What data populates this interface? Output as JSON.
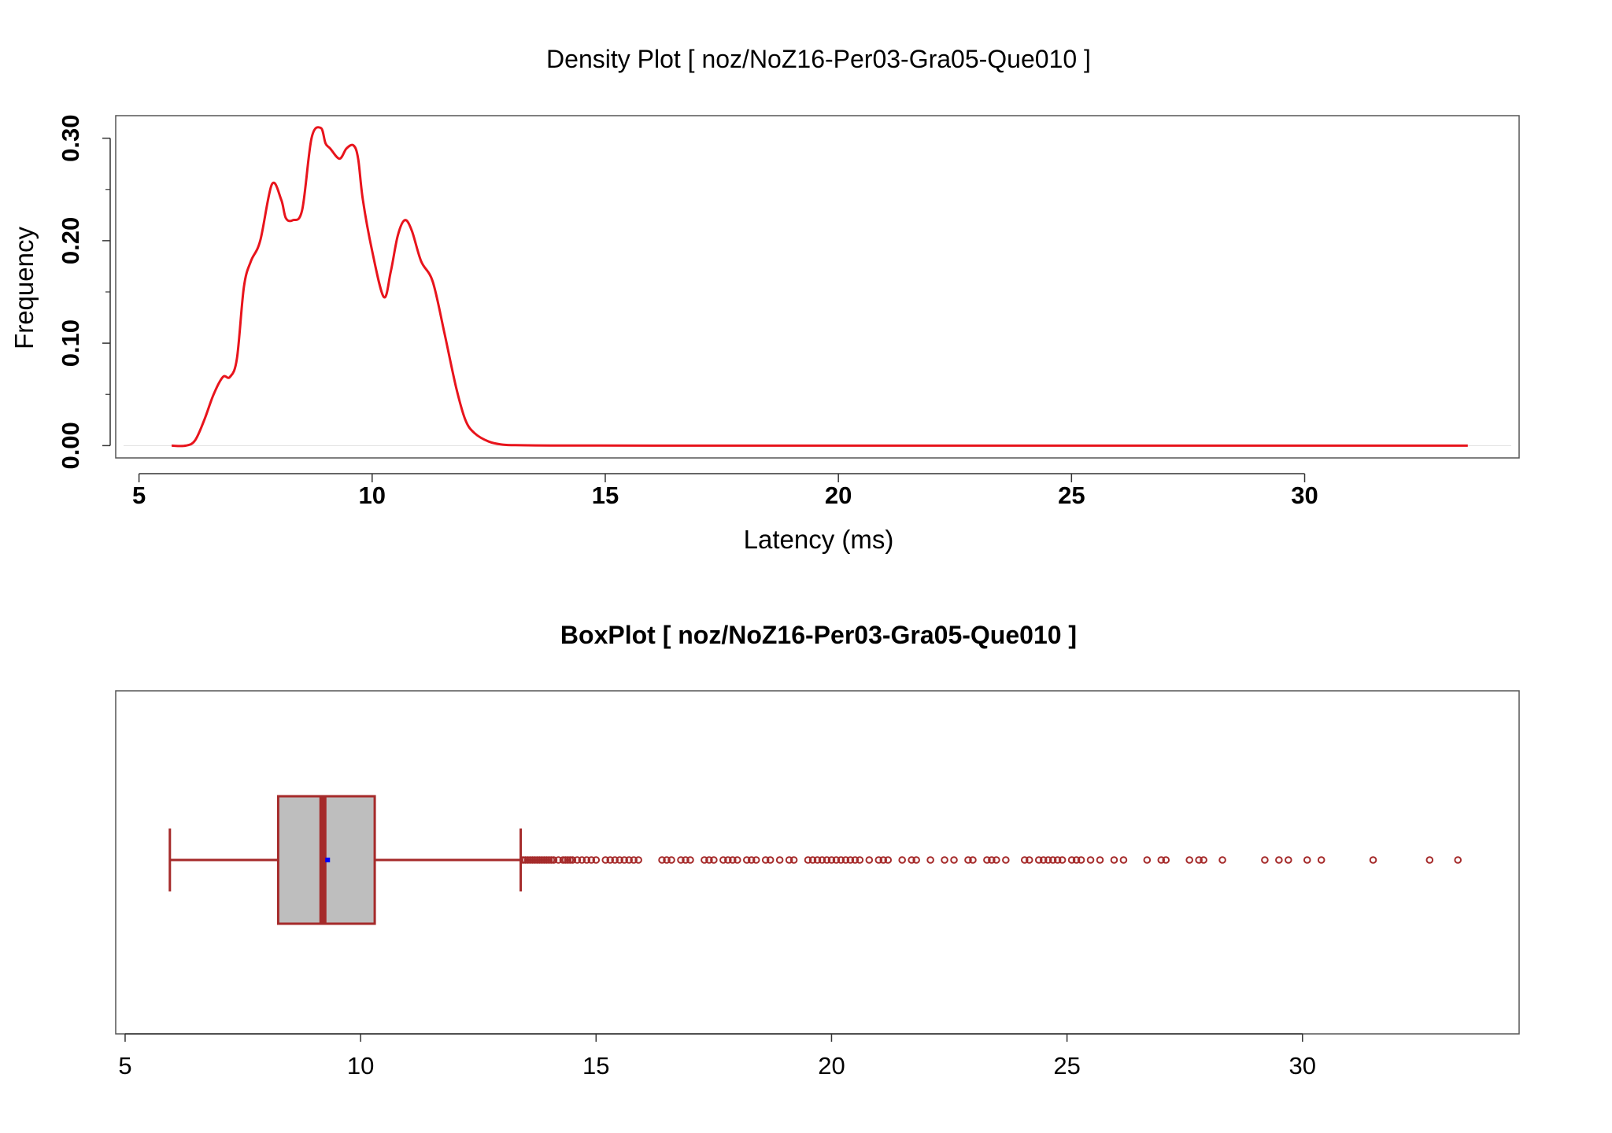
{
  "chart_data": [
    {
      "type": "line",
      "title": "Density Plot [ noz/NoZ16-Per03-Gra05-Que010 ]",
      "xlabel": "Latency (ms)",
      "ylabel": "Frequency",
      "xlim": [
        4.5,
        34.6
      ],
      "ylim": [
        -0.012,
        0.322
      ],
      "x_ticks": [
        5,
        10,
        15,
        20,
        25,
        30
      ],
      "x_tick_labels": [
        "5",
        "10",
        "15",
        "20",
        "25",
        "30"
      ],
      "y_ticks": [
        0.0,
        0.1,
        0.2,
        0.3
      ],
      "y_tick_labels": [
        "0.00",
        "0.10",
        "0.20",
        "0.30"
      ],
      "y_minor_ticks": [
        0.05,
        0.15,
        0.25
      ],
      "line_color": "#e8141c",
      "series": [
        {
          "x": [
            5.7,
            6.0,
            6.2,
            6.4,
            6.6,
            6.8,
            6.95,
            7.1,
            7.25,
            7.4,
            7.6,
            7.85,
            8.05,
            8.15,
            8.3,
            8.5,
            8.7,
            8.9,
            9.0,
            9.1,
            9.3,
            9.45,
            9.6,
            9.7,
            9.8,
            10.0,
            10.25,
            10.4,
            10.55,
            10.7,
            10.85,
            11.05,
            11.3,
            11.55,
            11.8,
            12.0,
            12.2,
            12.5,
            12.8,
            13.2,
            14.0,
            16.0,
            20.0,
            25.0,
            30.0,
            33.5
          ],
          "y": [
            0.0,
            0.0,
            0.005,
            0.025,
            0.05,
            0.067,
            0.067,
            0.085,
            0.155,
            0.18,
            0.2,
            0.255,
            0.24,
            0.222,
            0.22,
            0.23,
            0.3,
            0.31,
            0.295,
            0.29,
            0.28,
            0.29,
            0.293,
            0.28,
            0.24,
            0.19,
            0.145,
            0.17,
            0.205,
            0.22,
            0.21,
            0.18,
            0.16,
            0.11,
            0.057,
            0.025,
            0.012,
            0.004,
            0.001,
            0.0004,
            0.0001,
            0.0,
            0.0,
            0.0,
            0.0,
            0.0
          ]
        }
      ]
    },
    {
      "type": "box",
      "title": "BoxPlot [ noz/NoZ16-Per03-Gra05-Que010 ]",
      "xlim": [
        4.8,
        34.6
      ],
      "x_ticks": [
        5,
        10,
        15,
        20,
        25,
        30
      ],
      "x_tick_labels": [
        "5",
        "10",
        "15",
        "20",
        "25",
        "30"
      ],
      "whisker_low": 5.95,
      "q1": 8.25,
      "median": 9.2,
      "mean": 9.3,
      "q3": 10.3,
      "whisker_high": 13.4,
      "box_fill": "#bebebe",
      "box_color": "#a52a2a",
      "mean_color": "#0000ff",
      "outliers": [
        13.45,
        13.5,
        13.55,
        13.6,
        13.65,
        13.7,
        13.75,
        13.8,
        13.85,
        13.9,
        13.95,
        14.0,
        14.05,
        14.1,
        14.2,
        14.3,
        14.35,
        14.4,
        14.45,
        14.5,
        14.6,
        14.7,
        14.8,
        14.9,
        15.0,
        15.2,
        15.3,
        15.4,
        15.5,
        15.6,
        15.7,
        15.8,
        15.9,
        16.4,
        16.5,
        16.6,
        16.8,
        16.9,
        17.0,
        17.3,
        17.4,
        17.5,
        17.7,
        17.8,
        17.9,
        18.0,
        18.2,
        18.3,
        18.4,
        18.6,
        18.7,
        18.9,
        19.1,
        19.2,
        19.5,
        19.6,
        19.7,
        19.8,
        19.9,
        20.0,
        20.1,
        20.2,
        20.3,
        20.4,
        20.5,
        20.6,
        20.8,
        21.0,
        21.1,
        21.2,
        21.5,
        21.7,
        21.8,
        22.1,
        22.4,
        22.6,
        22.9,
        23.0,
        23.3,
        23.4,
        23.5,
        23.7,
        24.1,
        24.2,
        24.4,
        24.5,
        24.6,
        24.7,
        24.8,
        24.9,
        25.1,
        25.2,
        25.3,
        25.5,
        25.7,
        26.0,
        26.2,
        26.7,
        27.0,
        27.1,
        27.6,
        27.8,
        27.9,
        28.3,
        29.2,
        29.5,
        29.7,
        30.1,
        30.4,
        31.5,
        32.7,
        33.3
      ]
    }
  ]
}
